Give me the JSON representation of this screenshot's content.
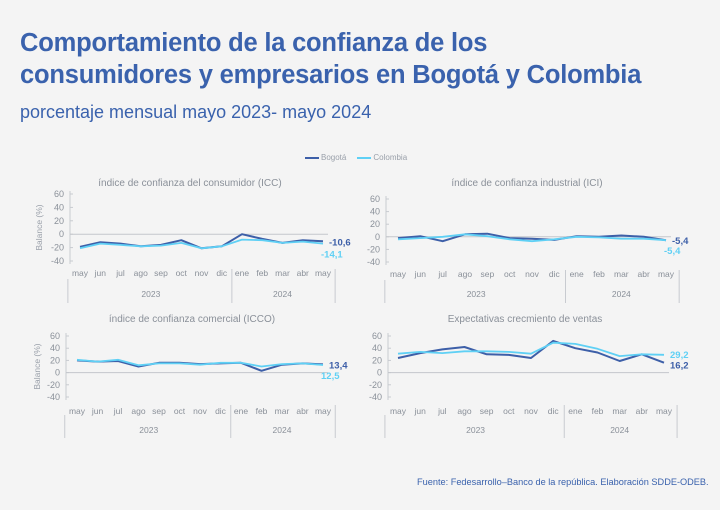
{
  "header": {
    "title_line1": "Comportamiento de la confianza de los",
    "title_line2": "consumidores y empresarios en Bogotá y Colombia",
    "subtitle": "porcentaje mensual mayo 2023- mayo 2024"
  },
  "legend": {
    "items": [
      {
        "label": "Bogotá",
        "color": "#3d5fa8"
      },
      {
        "label": "Colombia",
        "color": "#5fd0f5"
      }
    ]
  },
  "footer": {
    "source": "Fuente: Fedesarrollo–Banco de la república. Elaboración SDDE-ODEB."
  },
  "chart_data": [
    {
      "type": "line",
      "title": "índice de confianza del consumidor (ICC)",
      "ylabel": "Balance (%)",
      "xlabel": "",
      "ylim": [
        -40,
        60
      ],
      "yticks": [
        "60",
        "40",
        "20",
        "0",
        "-20",
        "-40"
      ],
      "categories": [
        "may",
        "jun",
        "jul",
        "ago",
        "sep",
        "oct",
        "nov",
        "dic",
        "ene",
        "feb",
        "mar",
        "abr",
        "may"
      ],
      "year_groups": [
        {
          "label": "2023",
          "count": 8
        },
        {
          "label": "2024",
          "count": 5
        }
      ],
      "series": [
        {
          "name": "Bogotá",
          "values": [
            -19,
            -12,
            -14,
            -18,
            -16,
            -9,
            -21,
            -18,
            0,
            -7,
            -13,
            -9,
            -10.6
          ],
          "end_label": "-10,6"
        },
        {
          "name": "Colombia",
          "values": [
            -21,
            -14,
            -16,
            -18,
            -17,
            -13,
            -21,
            -18,
            -8,
            -9,
            -13,
            -11,
            -14.1
          ],
          "end_label": "-14,1"
        }
      ]
    },
    {
      "type": "line",
      "title": "índice de confianza industrial (ICI)",
      "ylabel": "",
      "xlabel": "",
      "ylim": [
        -40,
        60
      ],
      "yticks": [
        "60",
        "40",
        "20",
        "0",
        "-20",
        "-40"
      ],
      "categories": [
        "may",
        "jun",
        "jul",
        "ago",
        "sep",
        "oct",
        "nov",
        "dic",
        "ene",
        "feb",
        "mar",
        "abr",
        "may"
      ],
      "year_groups": [
        {
          "label": "2023",
          "count": 8
        },
        {
          "label": "2024",
          "count": 5
        }
      ],
      "series": [
        {
          "name": "Bogotá",
          "values": [
            -2,
            1,
            -7,
            4,
            5,
            -2,
            -3,
            -5,
            1,
            0,
            2,
            0,
            -5.4
          ],
          "end_label": "-5,4"
        },
        {
          "name": "Colombia",
          "values": [
            -4,
            -2,
            0,
            4,
            1,
            -4,
            -7,
            -4,
            0,
            -1,
            -3,
            -3,
            -5.4
          ],
          "end_label": "-5,4"
        }
      ]
    },
    {
      "type": "line",
      "title": "índice de confianza comercial (ICCO)",
      "ylabel": "Balance (%)",
      "xlabel": "",
      "ylim": [
        -40,
        60
      ],
      "yticks": [
        "60",
        "40",
        "20",
        "0",
        "-20",
        "-40"
      ],
      "categories": [
        "may",
        "jun",
        "jul",
        "ago",
        "sep",
        "oct",
        "nov",
        "dic",
        "ene",
        "feb",
        "mar",
        "abr",
        "may"
      ],
      "year_groups": [
        {
          "label": "2023",
          "count": 8
        },
        {
          "label": "2024",
          "count": 5
        }
      ],
      "series": [
        {
          "name": "Bogotá",
          "values": [
            20,
            18,
            19,
            10,
            16,
            16,
            14,
            15,
            16,
            3,
            13,
            15,
            13.4
          ],
          "end_label": "13,4"
        },
        {
          "name": "Colombia",
          "values": [
            21,
            18,
            21,
            12,
            15,
            15,
            13,
            16,
            16,
            10,
            14,
            15,
            12.5
          ],
          "end_label": "12,5"
        }
      ]
    },
    {
      "type": "line",
      "title": "Expectativas crecmiento de ventas",
      "ylabel": "",
      "xlabel": "",
      "ylim": [
        -40,
        60
      ],
      "yticks": [
        "60",
        "40",
        "20",
        "0",
        "-20",
        "-40"
      ],
      "categories": [
        "may",
        "jun",
        "jul",
        "ago",
        "sep",
        "oct",
        "nov",
        "dic",
        "ene",
        "feb",
        "mar",
        "abr",
        "may"
      ],
      "year_groups": [
        {
          "label": "2023",
          "count": 8
        },
        {
          "label": "2024",
          "count": 5
        }
      ],
      "series": [
        {
          "name": "Bogotá",
          "values": [
            24,
            32,
            38,
            42,
            30,
            29,
            24,
            52,
            40,
            33,
            19,
            30,
            16.2
          ],
          "end_label": "16,2"
        },
        {
          "name": "Colombia",
          "values": [
            31,
            34,
            32,
            35,
            35,
            34,
            31,
            49,
            47,
            39,
            27,
            30,
            29.2
          ],
          "end_label": "29,2"
        }
      ]
    }
  ]
}
